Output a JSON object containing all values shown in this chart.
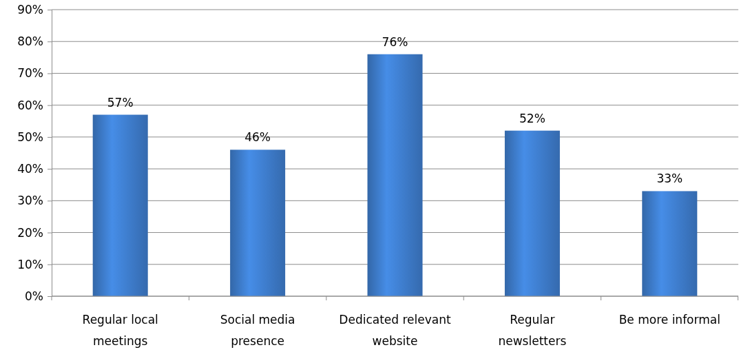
{
  "chart_data": {
    "type": "bar",
    "categories": [
      "Regular local meetings",
      "Social media presence",
      "Dedicated relevant website",
      "Regular newsletters",
      "Be more informal"
    ],
    "values": [
      57,
      46,
      76,
      52,
      33
    ],
    "value_labels": [
      "57%",
      "46%",
      "76%",
      "52%",
      "33%"
    ],
    "color": "#3f7fd0",
    "ylim": [
      0,
      90
    ],
    "yticks": [
      {
        "value": 0,
        "label": "0%"
      },
      {
        "value": 10,
        "label": "10%"
      },
      {
        "value": 20,
        "label": "20%"
      },
      {
        "value": 30,
        "label": "30%"
      },
      {
        "value": 40,
        "label": "40%"
      },
      {
        "value": 50,
        "label": "50%"
      },
      {
        "value": 60,
        "label": "60%"
      },
      {
        "value": 70,
        "label": "70%"
      },
      {
        "value": 80,
        "label": "80%"
      },
      {
        "value": 90,
        "label": "90%"
      }
    ],
    "grid": "y"
  }
}
